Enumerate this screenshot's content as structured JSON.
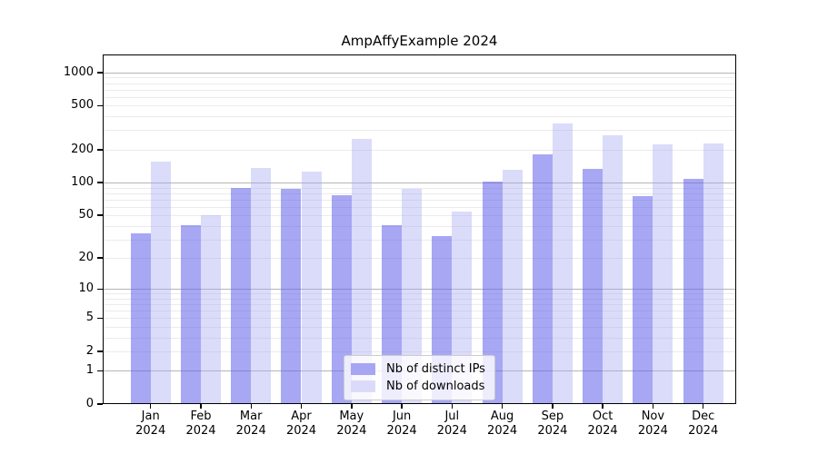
{
  "chart_data": {
    "type": "bar",
    "title": "AmpAffyExample 2024",
    "categories": [
      "Jan",
      "Feb",
      "Mar",
      "Apr",
      "May",
      "Jun",
      "Jul",
      "Aug",
      "Sep",
      "Oct",
      "Nov",
      "Dec"
    ],
    "x_tick_second_line": "2024",
    "series": [
      {
        "name": "Nb of distinct IPs",
        "color": "rgba(100,100,235,0.57)",
        "swatch_color": "#a6a6f3",
        "values": [
          34,
          41,
          90,
          88,
          76,
          41,
          32,
          103,
          181,
          134,
          75,
          108
        ]
      },
      {
        "name": "Nb of downloads",
        "color": "rgba(165,165,243,0.40)",
        "swatch_color": "#dbdbf9",
        "values": [
          155,
          50,
          137,
          126,
          250,
          88,
          54,
          130,
          345,
          272,
          223,
          228
        ]
      }
    ],
    "xlabel": "",
    "ylabel": "",
    "yscale": "log1p",
    "ylim": [
      0,
      1500
    ],
    "y_ticks": [
      0,
      1,
      2,
      5,
      10,
      20,
      50,
      100,
      200,
      500,
      1000
    ],
    "grid": "on",
    "legend_position": "lower center",
    "colors": {
      "major_grid": "#b5b5b5",
      "minor_grid": "#ebebeb",
      "axis": "#000000",
      "background": "#ffffff"
    }
  }
}
